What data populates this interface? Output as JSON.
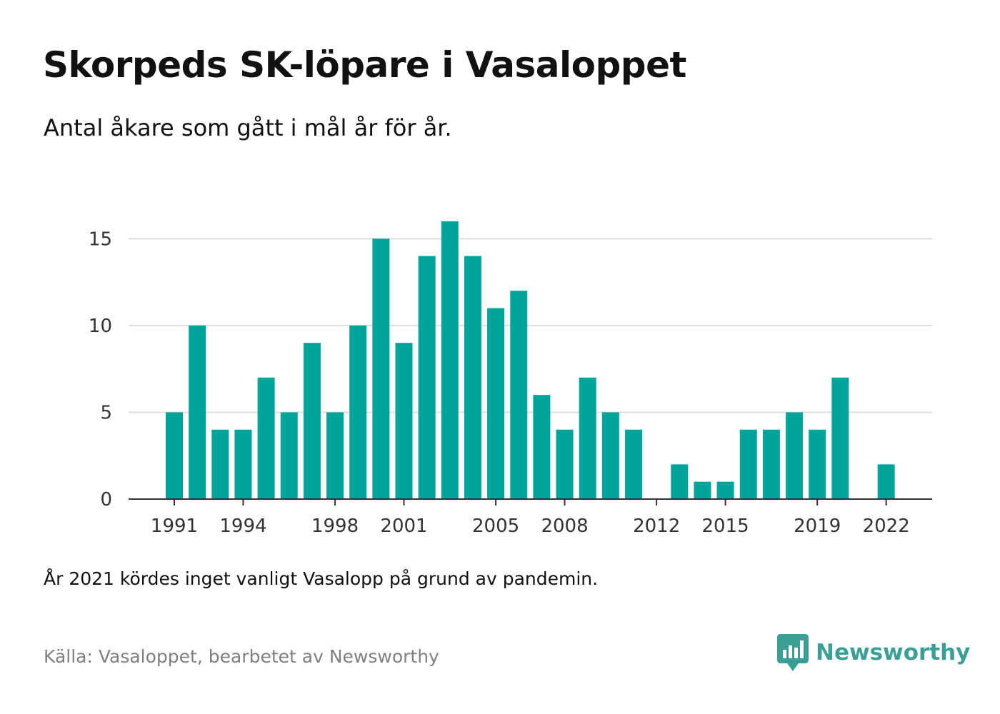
{
  "title": "Skorpeds SK-löpare i Vasaloppet",
  "subtitle": "Antal åkare som gått i mål år för år.",
  "note": "År 2021 kördes inget vanligt Vasalopp på grund av pandemin.",
  "source": "Källa: Vasaloppet, bearbetet av Newsworthy",
  "brand": {
    "name": "Newsworthy",
    "logo_icon": "newsworthy-bar-chart-logo-icon",
    "color": "#3aa096"
  },
  "colors": {
    "bar": "#00a49a",
    "grid": "#dddddd",
    "axis": "#333333",
    "tick_text": "#333333"
  },
  "chart_data": {
    "type": "bar",
    "title": "",
    "xlabel": "",
    "ylabel": "",
    "ylim": [
      0,
      16
    ],
    "yticks": [
      0,
      5,
      10,
      15
    ],
    "xtick_labels": [
      "1991",
      "1994",
      "1998",
      "2001",
      "2005",
      "2008",
      "2012",
      "2015",
      "2019",
      "2022"
    ],
    "grid": "horizontal",
    "categories": [
      "1991",
      "1992",
      "1993",
      "1994",
      "1995",
      "1996",
      "1997",
      "1998",
      "1999",
      "2000",
      "2001",
      "2002",
      "2003",
      "2004",
      "2005",
      "2006",
      "2007",
      "2008",
      "2009",
      "2010",
      "2011",
      "2012",
      "2013",
      "2014",
      "2015",
      "2016",
      "2017",
      "2018",
      "2019",
      "2020",
      "2021",
      "2022"
    ],
    "values": [
      5,
      10,
      4,
      4,
      7,
      5,
      9,
      5,
      10,
      15,
      9,
      14,
      16,
      14,
      11,
      12,
      6,
      4,
      7,
      5,
      4,
      0,
      2,
      1,
      1,
      4,
      4,
      5,
      4,
      7,
      0,
      2
    ]
  }
}
